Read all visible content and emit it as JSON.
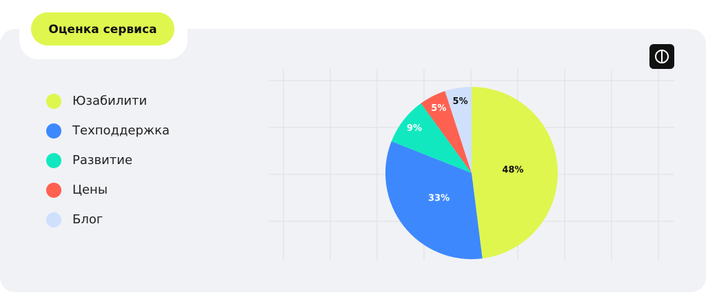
{
  "chart_data": {
    "type": "pie",
    "title": "Оценка сервиса",
    "categories": [
      "Юзабилити",
      "Техподдержка",
      "Развитие",
      "Цены",
      "Блог"
    ],
    "values": [
      48,
      33,
      9,
      5,
      5
    ],
    "value_labels": [
      "48%",
      "33%",
      "9%",
      "5%",
      "5%"
    ],
    "colors": [
      "#dff64f",
      "#3d88fd",
      "#12e8c0",
      "#ff6150",
      "#cfe0fd"
    ]
  }
}
